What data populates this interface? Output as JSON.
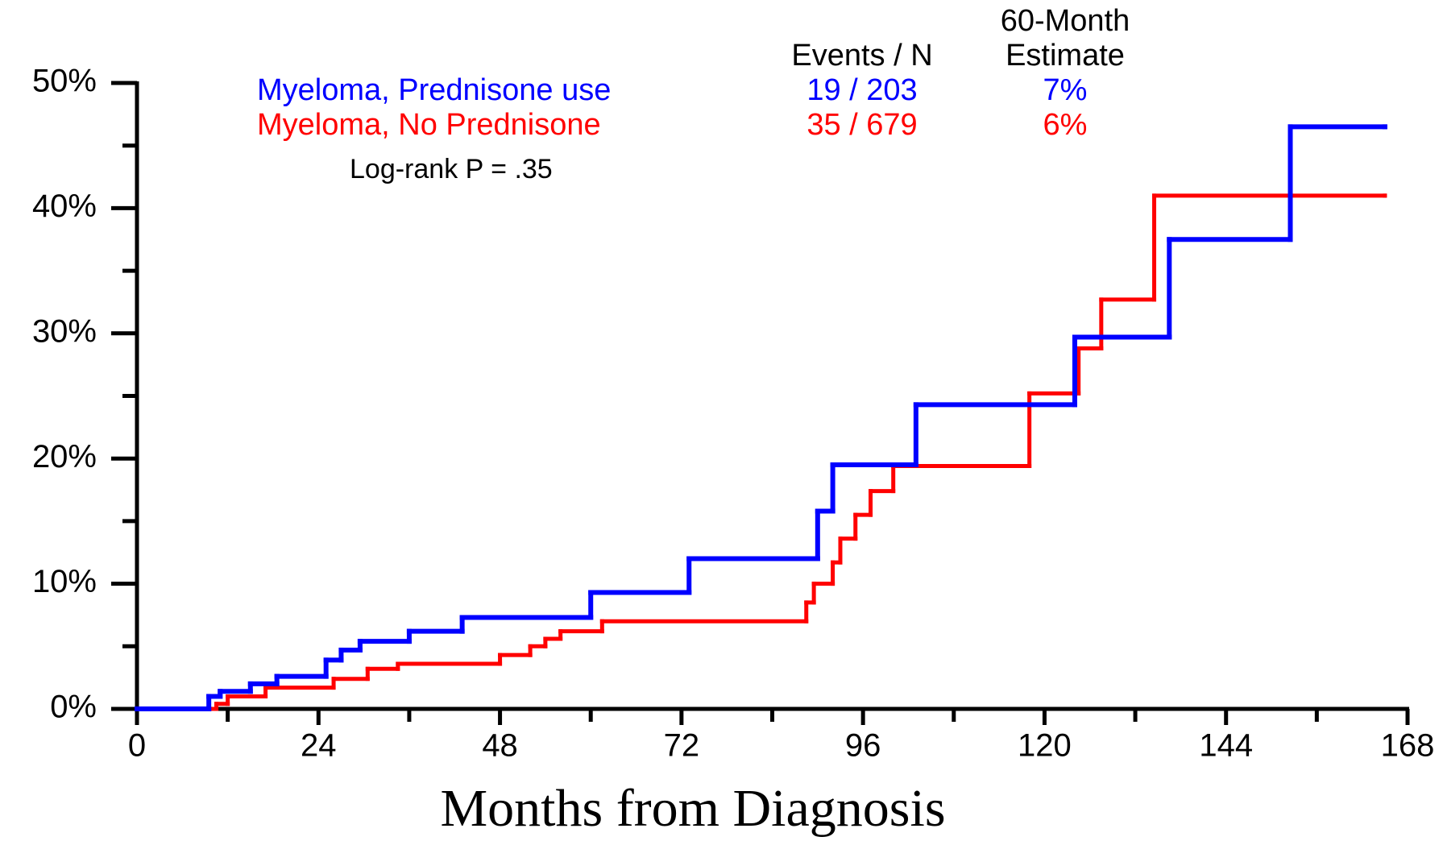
{
  "chart_data": {
    "type": "step",
    "x_label": "Months from Diagnosis",
    "xlim": [
      0,
      168
    ],
    "xticks": [
      0,
      24,
      48,
      72,
      96,
      120,
      144,
      168
    ],
    "xticks_minor": [
      12,
      36,
      60,
      84,
      108,
      132,
      156
    ],
    "ylim": [
      0,
      50
    ],
    "yticks": [
      {
        "value": 0,
        "label": "0%"
      },
      {
        "value": 10,
        "label": "10%"
      },
      {
        "value": 20,
        "label": "20%"
      },
      {
        "value": 30,
        "label": "30%"
      },
      {
        "value": 40,
        "label": "40%"
      },
      {
        "value": 50,
        "label": "50%"
      }
    ],
    "yticks_minor": [
      5,
      15,
      25,
      35,
      45
    ],
    "legend_headers": [
      [
        "Events / N"
      ],
      [
        "60-Month",
        "Estimate"
      ]
    ],
    "annotation": "Log-rank  P = .35",
    "series": [
      {
        "name": "Myeloma, Prednisone use",
        "color": "#0000ff",
        "events_n": "19 / 203",
        "estimate": "7%",
        "x": [
          0,
          9.5,
          11,
          15,
          18.5,
          25,
          27,
          29.5,
          36,
          43,
          60,
          73,
          90,
          92,
          103,
          124,
          136.5,
          152.5,
          165
        ],
        "values": [
          0,
          1.0,
          1.4,
          2.0,
          2.6,
          3.9,
          4.7,
          5.4,
          6.2,
          7.3,
          9.3,
          12.0,
          15.8,
          19.5,
          24.3,
          29.7,
          37.5,
          46.5,
          46.5
        ]
      },
      {
        "name": "Myeloma, No Prednisone",
        "color": "#ff0000",
        "events_n": "35 / 679",
        "estimate": "6%",
        "x": [
          0,
          10.5,
          12,
          17,
          26,
          30.5,
          34.5,
          48,
          52,
          54,
          56,
          61.5,
          88.5,
          89.5,
          92,
          93,
          95,
          97,
          100,
          118,
          124.5,
          127.5,
          134.5,
          165
        ],
        "values": [
          0,
          0.4,
          1.0,
          1.7,
          2.4,
          3.2,
          3.6,
          4.3,
          5.0,
          5.6,
          6.2,
          7.0,
          8.5,
          10.0,
          11.7,
          13.6,
          15.5,
          17.4,
          19.4,
          25.2,
          28.8,
          32.7,
          41.0,
          41.0
        ]
      }
    ]
  }
}
